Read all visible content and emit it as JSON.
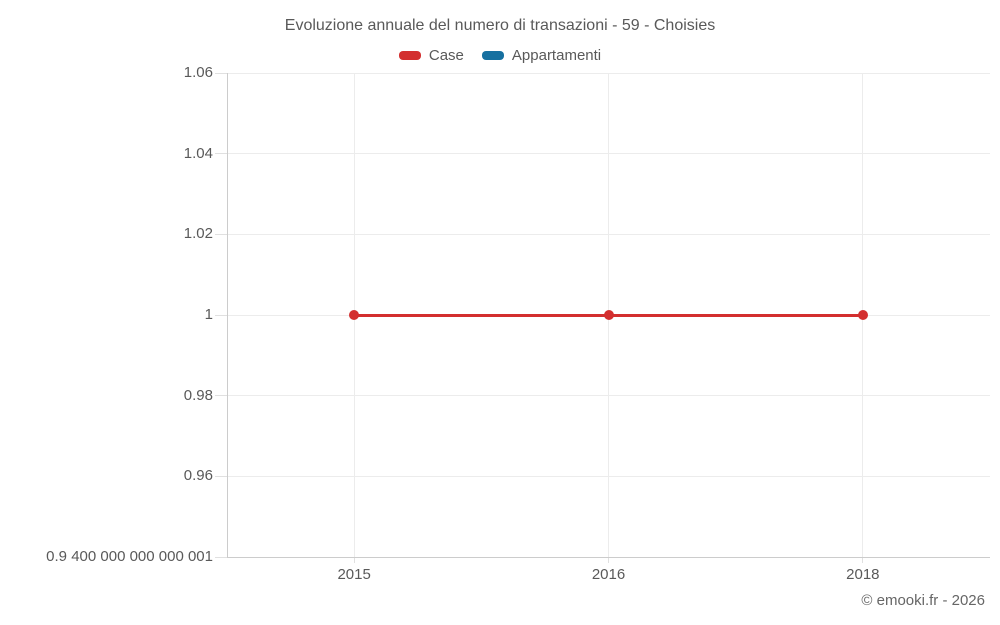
{
  "page": {
    "background": "#ffffff",
    "copyright": "© emooki.fr - 2026"
  },
  "chart_data": {
    "type": "line",
    "title": "Evoluzione annuale del numero di transazioni - 59 - Choisies",
    "categories": [
      "2015",
      "2016",
      "2018"
    ],
    "series": [
      {
        "name": "Case",
        "color": "#d32f2f",
        "values": [
          1,
          1,
          1
        ]
      },
      {
        "name": "Appartamenti",
        "color": "#1670a0",
        "values": []
      }
    ],
    "ylim": [
      0.94,
      1.06
    ],
    "yticks": [
      {
        "value": 1.06,
        "label": "1.06"
      },
      {
        "value": 1.04,
        "label": "1.04"
      },
      {
        "value": 1.02,
        "label": "1.02"
      },
      {
        "value": 1.0,
        "label": "1"
      },
      {
        "value": 0.98,
        "label": "0.98"
      },
      {
        "value": 0.96,
        "label": "0.96"
      },
      {
        "value": 0.94,
        "label": "0.9 400 000 000 000 001"
      }
    ],
    "grid": true,
    "legend_position": "top",
    "colors": {
      "text": "#595959",
      "grid": "#ececec",
      "axis": "#cccccc",
      "background": "#ffffff"
    }
  }
}
